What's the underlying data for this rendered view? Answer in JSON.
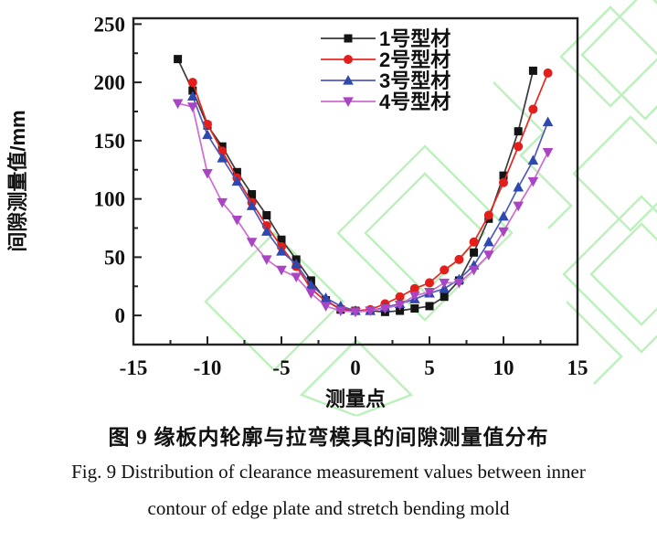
{
  "figure": {
    "caption_zh": "图 9  缘板内轮廓与拉弯模具的间隙测量值分布",
    "caption_en_line1": "Fig. 9  Distribution of clearance measurement values between inner",
    "caption_en_line2": "contour of edge plate and stretch bending mold"
  },
  "watermark_color": "#7fe37f",
  "chart_data": {
    "type": "line",
    "title": "",
    "xlabel": "测量点",
    "ylabel": "间隙测量值/mm",
    "xlim": [
      -15,
      15
    ],
    "ylim": [
      -25,
      255
    ],
    "x_ticks": [
      -15,
      -10,
      -5,
      0,
      5,
      10,
      15
    ],
    "x_minor_step": 2.5,
    "y_ticks": [
      0,
      50,
      100,
      150,
      200,
      250
    ],
    "y_minor_step": 25,
    "grid": false,
    "legend_position": "inside-top-right",
    "axis_color": "#222222",
    "series": [
      {
        "name": "1号型材",
        "marker": "square",
        "line_color": "#3a3a3a",
        "marker_color": "#141414",
        "points": [
          [
            -12,
            220
          ],
          [
            -11,
            193
          ],
          [
            -10,
            163
          ],
          [
            -9,
            145
          ],
          [
            -8,
            123
          ],
          [
            -7,
            104
          ],
          [
            -6,
            86
          ],
          [
            -5,
            65
          ],
          [
            -4,
            48
          ],
          [
            -3,
            30
          ],
          [
            -2,
            13
          ],
          [
            -1,
            5
          ],
          [
            0,
            4
          ],
          [
            1,
            4
          ],
          [
            2,
            3
          ],
          [
            3,
            4
          ],
          [
            4,
            6
          ],
          [
            5,
            8
          ],
          [
            6,
            16
          ],
          [
            7,
            30
          ],
          [
            8,
            54
          ],
          [
            9,
            83
          ],
          [
            10,
            120
          ],
          [
            11,
            158
          ],
          [
            12,
            210
          ]
        ]
      },
      {
        "name": "2号型材",
        "marker": "circle",
        "line_color": "#e8251f",
        "marker_color": "#e41e1a",
        "points": [
          [
            -11,
            200
          ],
          [
            -10,
            164
          ],
          [
            -9,
            141
          ],
          [
            -8,
            118
          ],
          [
            -7,
            97
          ],
          [
            -6,
            77
          ],
          [
            -5,
            59
          ],
          [
            -4,
            42
          ],
          [
            -3,
            23
          ],
          [
            -2,
            12
          ],
          [
            -1,
            6
          ],
          [
            0,
            4
          ],
          [
            1,
            5
          ],
          [
            2,
            10
          ],
          [
            3,
            16
          ],
          [
            4,
            23
          ],
          [
            5,
            28
          ],
          [
            6,
            39
          ],
          [
            7,
            48
          ],
          [
            8,
            63
          ],
          [
            9,
            86
          ],
          [
            10,
            114
          ],
          [
            11,
            145
          ],
          [
            12,
            177
          ],
          [
            13,
            208
          ]
        ]
      },
      {
        "name": "3号型材",
        "marker": "triangle-up",
        "line_color": "#5059c0",
        "marker_color": "#2e49ae",
        "points": [
          [
            -11,
            188
          ],
          [
            -10,
            155
          ],
          [
            -9,
            135
          ],
          [
            -8,
            115
          ],
          [
            -7,
            94
          ],
          [
            -6,
            72
          ],
          [
            -5,
            55
          ],
          [
            -4,
            44
          ],
          [
            -3,
            26
          ],
          [
            -2,
            15
          ],
          [
            -1,
            8
          ],
          [
            0,
            4
          ],
          [
            1,
            4
          ],
          [
            2,
            7
          ],
          [
            3,
            10
          ],
          [
            4,
            14
          ],
          [
            5,
            19
          ],
          [
            6,
            23
          ],
          [
            7,
            31
          ],
          [
            8,
            43
          ],
          [
            9,
            63
          ],
          [
            10,
            85
          ],
          [
            11,
            110
          ],
          [
            12,
            133
          ],
          [
            13,
            166
          ]
        ]
      },
      {
        "name": "4号型材",
        "marker": "triangle-down",
        "line_color": "#cf6ad0",
        "marker_color": "#a944c4",
        "points": [
          [
            -12,
            182
          ],
          [
            -11,
            179
          ],
          [
            -10,
            122
          ],
          [
            -9,
            97
          ],
          [
            -8,
            82
          ],
          [
            -7,
            63
          ],
          [
            -6,
            48
          ],
          [
            -5,
            39
          ],
          [
            -4,
            33
          ],
          [
            -3,
            19
          ],
          [
            -2,
            8
          ],
          [
            -1,
            4
          ],
          [
            0,
            3
          ],
          [
            1,
            4
          ],
          [
            2,
            6
          ],
          [
            3,
            9
          ],
          [
            4,
            17
          ],
          [
            5,
            20
          ],
          [
            6,
            28
          ],
          [
            7,
            28
          ],
          [
            8,
            39
          ],
          [
            9,
            52
          ],
          [
            10,
            72
          ],
          [
            11,
            94
          ],
          [
            12,
            115
          ],
          [
            13,
            140
          ]
        ]
      }
    ]
  }
}
